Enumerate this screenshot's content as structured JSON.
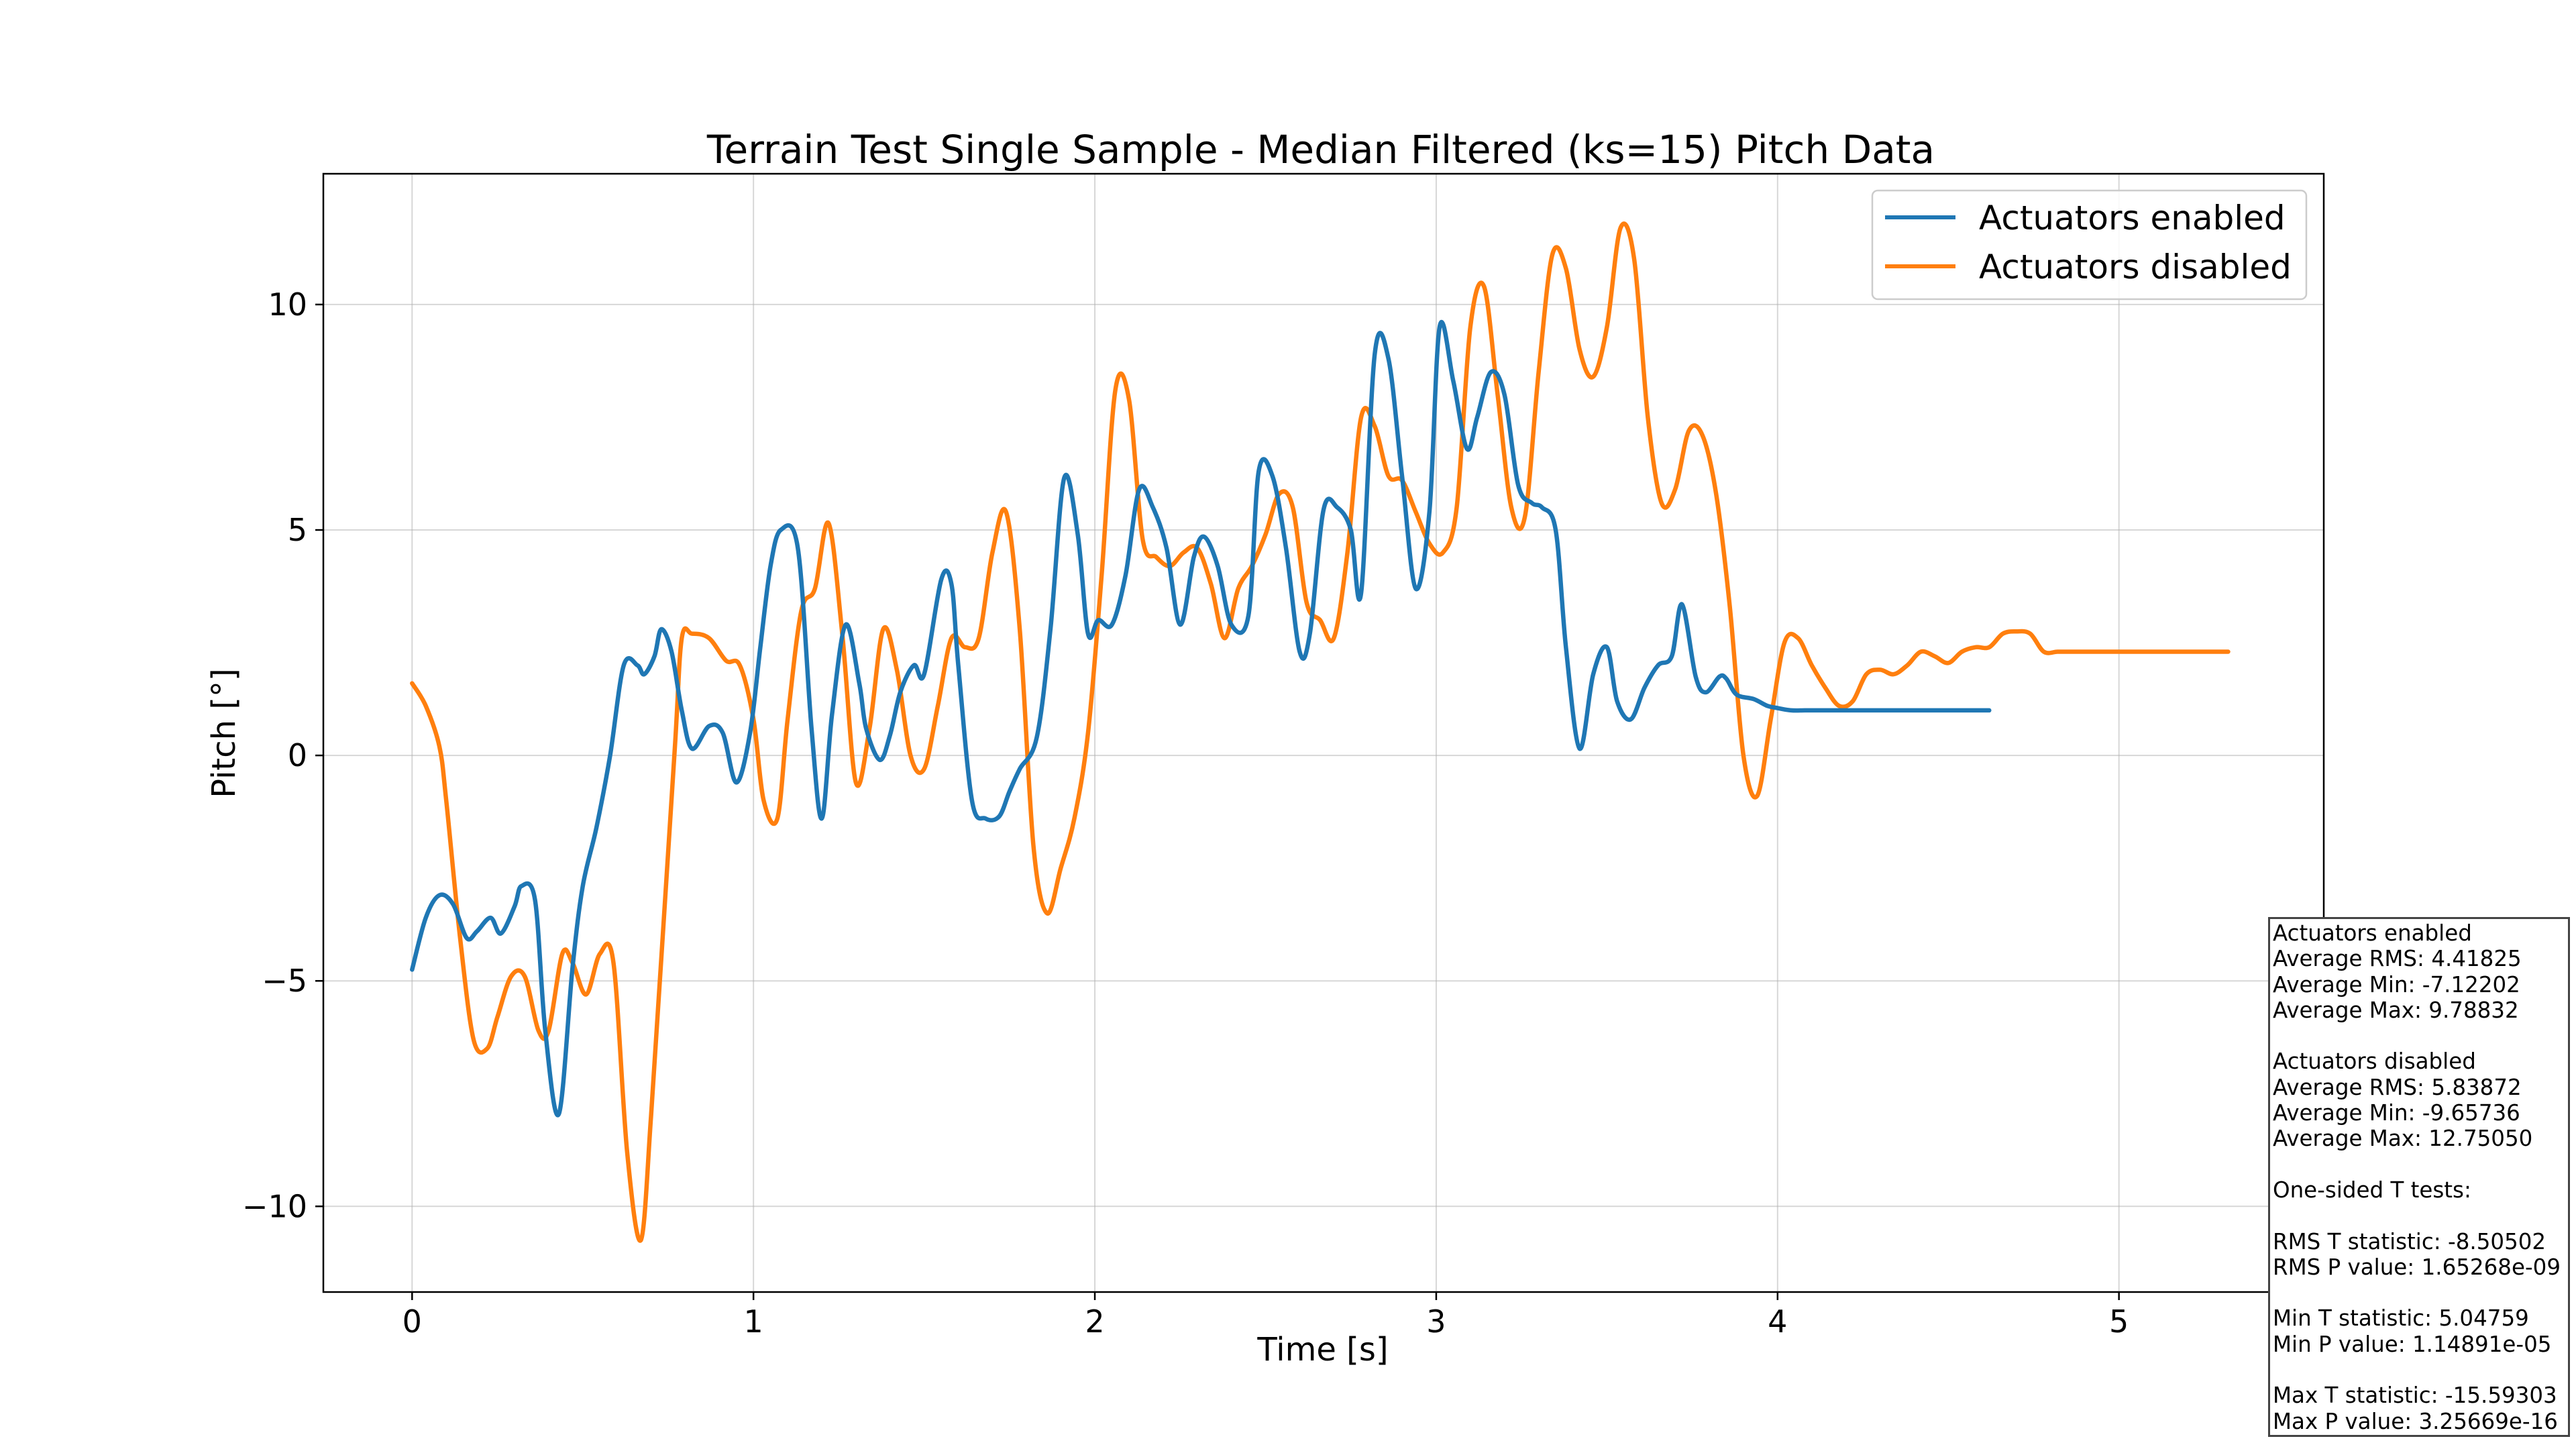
{
  "chart_data": {
    "type": "line",
    "title": "Terrain Test Single Sample - Median Filtered (ks=15) Pitch Data",
    "xlabel": "Time [s]",
    "ylabel": "Pitch [°]",
    "xlim": [
      -0.26,
      5.6
    ],
    "ylim": [
      -11.9,
      12.9
    ],
    "xticks": [
      0,
      1,
      2,
      3,
      4,
      5
    ],
    "xtick_labels": [
      "0",
      "1",
      "2",
      "3",
      "4",
      "5"
    ],
    "yticks": [
      -10,
      -5,
      0,
      5,
      10
    ],
    "ytick_labels": [
      "−10",
      "−5",
      "0",
      "5",
      "10"
    ],
    "grid": true,
    "legend_position": "top-right",
    "series": [
      {
        "name": "Actuators enabled",
        "color": "#1f77b4",
        "x": [
          0,
          0.04,
          0.08,
          0.12,
          0.16,
          0.19,
          0.23,
          0.26,
          0.3,
          0.32,
          0.36,
          0.39,
          0.43,
          0.47,
          0.5,
          0.54,
          0.58,
          0.62,
          0.66,
          0.68,
          0.71,
          0.73,
          0.76,
          0.79,
          0.82,
          0.87,
          0.91,
          0.95,
          0.99,
          1.02,
          1.05,
          1.08,
          1.13,
          1.17,
          1.2,
          1.23,
          1.27,
          1.31,
          1.33,
          1.37,
          1.4,
          1.43,
          1.47,
          1.5,
          1.55,
          1.58,
          1.6,
          1.64,
          1.68,
          1.72,
          1.75,
          1.78,
          1.83,
          1.87,
          1.91,
          1.95,
          1.98,
          2.01,
          2.05,
          2.09,
          2.13,
          2.17,
          2.21,
          2.25,
          2.29,
          2.32,
          2.36,
          2.4,
          2.45,
          2.48,
          2.52,
          2.56,
          2.6,
          2.63,
          2.67,
          2.71,
          2.75,
          2.78,
          2.82,
          2.86,
          2.9,
          2.94,
          2.98,
          3.01,
          3.05,
          3.09,
          3.12,
          3.16,
          3.2,
          3.24,
          3.28,
          3.31,
          3.35,
          3.38,
          3.42,
          3.46,
          3.5,
          3.53,
          3.57,
          3.61,
          3.65,
          3.69,
          3.72,
          3.76,
          3.79,
          3.83,
          3.85,
          3.88,
          3.93,
          3.97,
          4.0,
          4.04,
          4.08,
          4.12,
          4.16,
          4.2,
          4.24,
          4.26,
          4.28,
          4.32,
          4.36,
          4.4,
          4.44,
          4.48,
          4.52,
          4.56,
          4.6,
          4.62
        ],
        "y": [
          -4.75,
          -3.6,
          -3.1,
          -3.3,
          -4.05,
          -3.9,
          -3.6,
          -3.95,
          -3.35,
          -2.9,
          -3.2,
          -6.1,
          -7.95,
          -4.7,
          -2.9,
          -1.6,
          0.0,
          2.0,
          2.0,
          1.8,
          2.2,
          2.8,
          2.3,
          1.0,
          0.15,
          0.65,
          0.5,
          -0.6,
          0.5,
          2.4,
          4.2,
          5.0,
          4.6,
          0.6,
          -1.4,
          0.9,
          2.9,
          1.6,
          0.6,
          -0.1,
          0.45,
          1.4,
          2.0,
          1.8,
          3.9,
          3.8,
          2.0,
          -1.0,
          -1.4,
          -1.35,
          -0.8,
          -0.3,
          0.4,
          2.8,
          6.15,
          4.9,
          2.7,
          3.0,
          2.9,
          4.0,
          5.9,
          5.5,
          4.6,
          2.9,
          4.4,
          4.85,
          4.2,
          2.9,
          3.1,
          6.3,
          6.2,
          4.6,
          2.3,
          2.7,
          5.45,
          5.5,
          5.0,
          3.6,
          8.9,
          8.8,
          6.2,
          3.7,
          5.4,
          9.5,
          8.3,
          6.8,
          7.5,
          8.5,
          8.0,
          6.0,
          5.6,
          5.5,
          5.0,
          2.4,
          0.15,
          1.8,
          2.4,
          1.2,
          0.8,
          1.5,
          2.0,
          2.2,
          3.35,
          1.75,
          1.4,
          1.75,
          1.7,
          1.35,
          1.25,
          1.1,
          1.05,
          1.0,
          1.0,
          1.0,
          1.0,
          1.0,
          1.0,
          1.0,
          1.0,
          1.0,
          1.0,
          1.0,
          1.0,
          1.0,
          1.0,
          1.0,
          1.0,
          1.0
        ]
      },
      {
        "name": "Actuators disabled",
        "color": "#ff7f0e",
        "x": [
          0,
          0.04,
          0.08,
          0.1,
          0.14,
          0.18,
          0.22,
          0.25,
          0.29,
          0.33,
          0.37,
          0.4,
          0.44,
          0.47,
          0.51,
          0.55,
          0.59,
          0.63,
          0.67,
          0.7,
          0.73,
          0.77,
          0.79,
          0.82,
          0.87,
          0.92,
          0.96,
          1.0,
          1.03,
          1.07,
          1.1,
          1.14,
          1.18,
          1.22,
          1.26,
          1.3,
          1.34,
          1.38,
          1.42,
          1.46,
          1.5,
          1.54,
          1.58,
          1.62,
          1.66,
          1.7,
          1.74,
          1.78,
          1.82,
          1.86,
          1.9,
          1.94,
          1.98,
          2.02,
          2.06,
          2.1,
          2.14,
          2.18,
          2.22,
          2.26,
          2.3,
          2.34,
          2.38,
          2.42,
          2.46,
          2.5,
          2.54,
          2.58,
          2.62,
          2.66,
          2.7,
          2.74,
          2.78,
          2.82,
          2.86,
          2.9,
          2.94,
          2.98,
          3.02,
          3.06,
          3.1,
          3.14,
          3.18,
          3.22,
          3.26,
          3.3,
          3.34,
          3.38,
          3.42,
          3.46,
          3.5,
          3.54,
          3.58,
          3.62,
          3.66,
          3.7,
          3.74,
          3.78,
          3.82,
          3.86,
          3.9,
          3.94,
          3.98,
          4.02,
          4.06,
          4.1,
          4.14,
          4.18,
          4.22,
          4.26,
          4.3,
          4.34,
          4.38,
          4.42,
          4.46,
          4.5,
          4.54,
          4.58,
          4.62,
          4.66,
          4.7,
          4.74,
          4.78,
          4.82,
          4.86,
          4.9,
          4.94,
          4.98,
          5.02,
          5.06,
          5.1,
          5.14,
          5.18,
          5.22,
          5.26,
          5.3,
          5.32
        ],
        "y": [
          1.6,
          1.1,
          0.2,
          -1.0,
          -4.0,
          -6.3,
          -6.5,
          -5.8,
          -4.9,
          -4.9,
          -6.1,
          -6.1,
          -4.4,
          -4.6,
          -5.3,
          -4.4,
          -4.6,
          -8.8,
          -10.75,
          -8.0,
          -4.5,
          0.2,
          2.6,
          2.7,
          2.6,
          2.1,
          2.0,
          0.8,
          -1.0,
          -1.4,
          0.8,
          3.2,
          3.7,
          5.15,
          2.7,
          -0.6,
          0.6,
          2.8,
          1.9,
          0.0,
          -0.3,
          1.1,
          2.6,
          2.4,
          2.6,
          4.5,
          5.4,
          2.8,
          -2.0,
          -3.5,
          -2.5,
          -1.4,
          0.5,
          4.0,
          8.1,
          7.9,
          4.8,
          4.4,
          4.2,
          4.5,
          4.6,
          3.8,
          2.6,
          3.7,
          4.2,
          4.9,
          5.8,
          5.5,
          3.4,
          3.0,
          2.6,
          4.5,
          7.5,
          7.3,
          6.2,
          6.1,
          5.4,
          4.7,
          4.5,
          5.5,
          9.5,
          10.4,
          8.0,
          5.5,
          5.3,
          8.5,
          11.1,
          10.8,
          9.0,
          8.4,
          9.5,
          11.7,
          11.0,
          7.5,
          5.6,
          5.9,
          7.2,
          7.1,
          5.8,
          3.3,
          0.0,
          -0.9,
          0.8,
          2.5,
          2.6,
          2.0,
          1.5,
          1.1,
          1.2,
          1.8,
          1.9,
          1.8,
          2.0,
          2.3,
          2.2,
          2.05,
          2.3,
          2.4,
          2.4,
          2.7,
          2.75,
          2.7,
          2.3,
          2.3,
          2.3,
          2.3,
          2.3,
          2.3,
          2.3,
          2.3,
          2.3,
          2.3,
          2.3,
          2.3,
          2.3,
          2.3,
          2.3
        ]
      }
    ],
    "stats_box": {
      "lines": [
        "Actuators enabled",
        "Average RMS: 4.41825",
        "Average Min: -7.12202",
        "Average Max: 9.78832",
        "",
        "Actuators disabled",
        "Average RMS: 5.83872",
        "Average Min: -9.65736",
        "Average Max: 12.75050",
        "",
        "One-sided T tests:",
        "",
        "RMS T statistic: -8.50502",
        "RMS P value: 1.65268e-09",
        "",
        "Min T statistic: 5.04759",
        "Min P value: 1.14891e-05",
        "",
        "Max T statistic: -15.59303",
        "Max P value: 3.25669e-16"
      ]
    }
  }
}
